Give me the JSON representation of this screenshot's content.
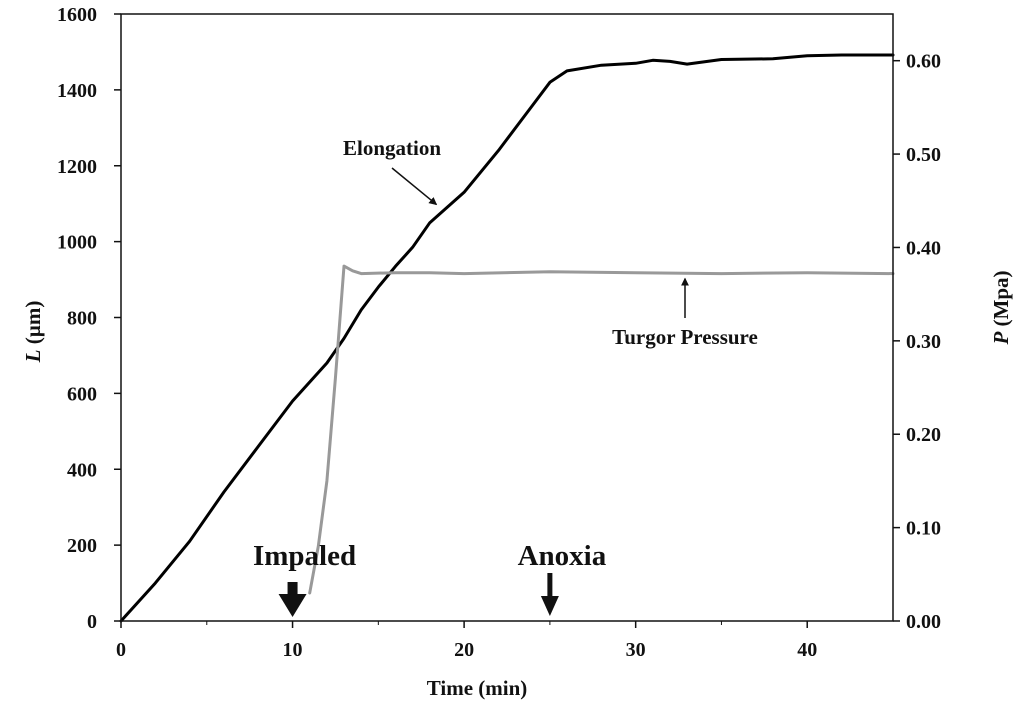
{
  "chart_data": {
    "type": "line",
    "x": {
      "label": "Time (min)",
      "range": [
        0,
        45
      ],
      "ticks": [
        0,
        10,
        20,
        30,
        40
      ]
    },
    "y_left": {
      "label_symbol": "L",
      "label_unit": "(µm)",
      "range": [
        0,
        1600
      ],
      "ticks": [
        0,
        200,
        400,
        600,
        800,
        1000,
        1200,
        1400,
        1600
      ]
    },
    "y_right": {
      "label_symbol": "P",
      "label_unit": "(Mpa)",
      "range": [
        0,
        0.65
      ],
      "ticks": [
        "0.00",
        "0.10",
        "0.20",
        "0.30",
        "0.40",
        "0.50",
        "0.60"
      ]
    },
    "series": [
      {
        "name": "Elongation",
        "axis": "left",
        "color": "#000000",
        "points": [
          [
            0,
            0
          ],
          [
            2,
            100
          ],
          [
            4,
            210
          ],
          [
            6,
            340
          ],
          [
            8,
            460
          ],
          [
            10,
            580
          ],
          [
            12,
            680
          ],
          [
            13,
            745
          ],
          [
            14,
            820
          ],
          [
            15,
            880
          ],
          [
            16,
            935
          ],
          [
            17,
            985
          ],
          [
            18,
            1050
          ],
          [
            20,
            1130
          ],
          [
            22,
            1240
          ],
          [
            24,
            1360
          ],
          [
            25,
            1420
          ],
          [
            26,
            1450
          ],
          [
            28,
            1465
          ],
          [
            30,
            1470
          ],
          [
            31,
            1478
          ],
          [
            32,
            1475
          ],
          [
            33,
            1468
          ],
          [
            35,
            1480
          ],
          [
            38,
            1482
          ],
          [
            40,
            1490
          ],
          [
            42,
            1492
          ],
          [
            45,
            1492
          ]
        ]
      },
      {
        "name": "Turgor Pressure",
        "axis": "right",
        "color": "#999999",
        "points": [
          [
            11,
            0.03
          ],
          [
            11.5,
            0.08
          ],
          [
            12,
            0.15
          ],
          [
            12.5,
            0.26
          ],
          [
            13,
            0.38
          ],
          [
            13.5,
            0.375
          ],
          [
            14,
            0.372
          ],
          [
            16,
            0.373
          ],
          [
            18,
            0.373
          ],
          [
            20,
            0.372
          ],
          [
            25,
            0.374
          ],
          [
            30,
            0.373
          ],
          [
            35,
            0.372
          ],
          [
            40,
            0.373
          ],
          [
            45,
            0.372
          ]
        ]
      }
    ],
    "annotations": [
      {
        "id": "elongation",
        "text": "Elongation",
        "points_to": [
          18.5,
          1090
        ]
      },
      {
        "id": "turgor",
        "text": "Turgor Pressure",
        "points_to": [
          32.5,
          0.373
        ]
      }
    ],
    "events": [
      {
        "id": "impaled",
        "text": "Impaled",
        "x": 10
      },
      {
        "id": "anoxia",
        "text": "Anoxia",
        "x": 25
      }
    ]
  }
}
